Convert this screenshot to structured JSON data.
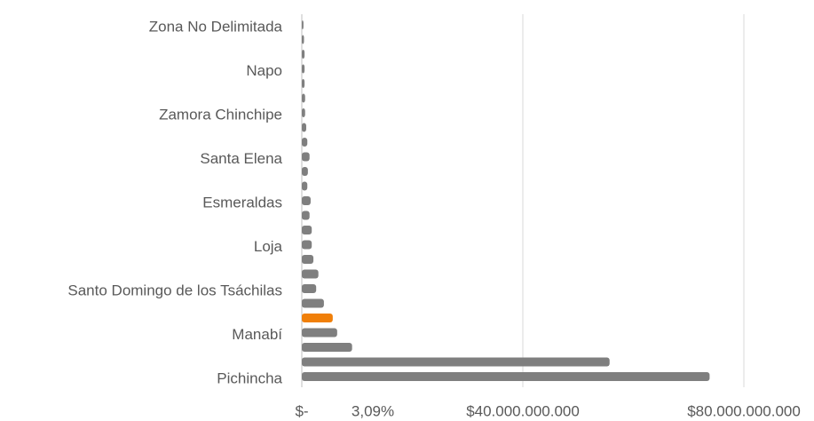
{
  "chart_data": {
    "type": "barh",
    "categories": [
      "Pichincha",
      null,
      null,
      "Manabí",
      null,
      null,
      "Santo Domingo de los Tsáchilas",
      null,
      null,
      "Loja",
      null,
      null,
      "Esmeraldas",
      null,
      null,
      "Santa Elena",
      null,
      null,
      "Zamora Chinchipe",
      null,
      null,
      "Napo",
      null,
      null,
      "Zona No Delimitada"
    ],
    "values": [
      73800000000,
      55700000000,
      9100000000,
      6400000000,
      5600000000,
      4000000000,
      2600000000,
      3000000000,
      2100000000,
      1800000000,
      1800000000,
      1400000000,
      1600000000,
      1000000000,
      1100000000,
      1400000000,
      1000000000,
      800000000,
      600000000,
      600000000,
      500000000,
      500000000,
      500000000,
      400000000,
      300000000
    ],
    "colors": [
      "#7f7f7f",
      "#7f7f7f",
      "#7f7f7f",
      "#7f7f7f",
      "#f07f09",
      "#7f7f7f",
      "#7f7f7f",
      "#7f7f7f",
      "#7f7f7f",
      "#7f7f7f",
      "#7f7f7f",
      "#7f7f7f",
      "#7f7f7f",
      "#7f7f7f",
      "#7f7f7f",
      "#7f7f7f",
      "#7f7f7f",
      "#7f7f7f",
      "#7f7f7f",
      "#7f7f7f",
      "#7f7f7f",
      "#7f7f7f",
      "#7f7f7f",
      "#7f7f7f",
      "#7f7f7f"
    ],
    "xlim": [
      0,
      80000000000
    ],
    "xticks": [
      {
        "value": 0,
        "label": "$-"
      },
      {
        "value": 40000000000,
        "label": "$40.000.000.000"
      },
      {
        "value": 80000000000,
        "label": "$80.000.000.000"
      }
    ],
    "annotations": [
      "3,09%"
    ],
    "grid": true
  }
}
